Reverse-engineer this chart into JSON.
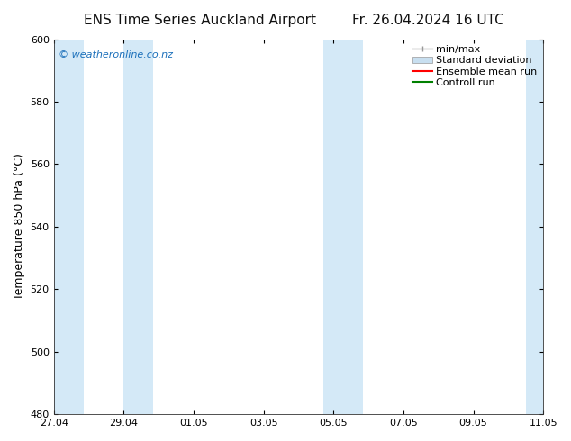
{
  "title_left": "ENS Time Series Auckland Airport",
  "title_right": "Fr. 26.04.2024 16 UTC",
  "ylabel": "Temperature 850 hPa (°C)",
  "ylim": [
    480,
    600
  ],
  "yticks": [
    480,
    500,
    520,
    540,
    560,
    580,
    600
  ],
  "x_tick_labels": [
    "27.04",
    "29.04",
    "01.05",
    "03.05",
    "05.05",
    "07.05",
    "09.05",
    "11.05"
  ],
  "x_tick_positions": [
    0,
    2,
    4,
    6,
    8,
    10,
    12,
    14
  ],
  "bg_color": "#ffffff",
  "plot_bg_color": "#ffffff",
  "shaded_bands": [
    {
      "start": 0,
      "end": 1.0
    },
    {
      "start": 2.0,
      "end": 3.0
    },
    {
      "start": 7.8,
      "end": 9.0
    },
    {
      "start": 13.5,
      "end": 14.0
    }
  ],
  "shaded_color": "#d4e9f7",
  "legend_items": [
    {
      "label": "min/max",
      "type": "errorbar",
      "color": "#aaaaaa"
    },
    {
      "label": "Standard deviation",
      "type": "box",
      "color": "#c8dff0"
    },
    {
      "label": "Ensemble mean run",
      "type": "line",
      "color": "#ff0000"
    },
    {
      "label": "Controll run",
      "type": "line",
      "color": "#008000"
    }
  ],
  "watermark_text": "© weatheronline.co.nz",
  "watermark_color": "#1a6fba",
  "title_fontsize": 11,
  "axis_label_fontsize": 9,
  "tick_fontsize": 8,
  "legend_fontsize": 8,
  "x_range": [
    0,
    14
  ]
}
